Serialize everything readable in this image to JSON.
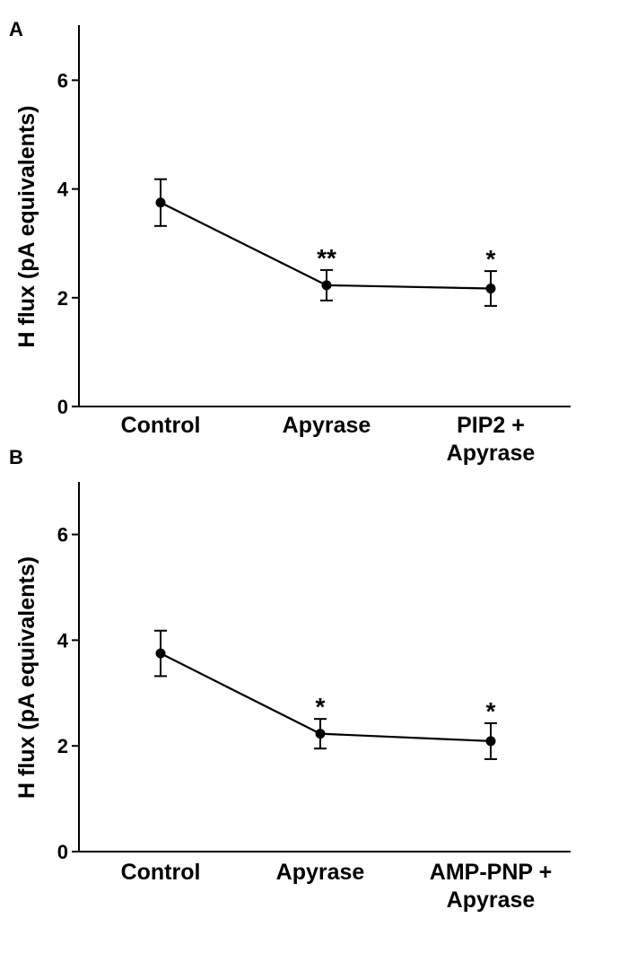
{
  "chart_data": [
    {
      "type": "line",
      "panel_label": "A",
      "ylabel": "H flux (pA equivalents)",
      "xlabel": "",
      "ylim": [
        0,
        7
      ],
      "yticks": [
        "0",
        "2",
        "4",
        "6"
      ],
      "categories": [
        "Control",
        "Apyrase",
        "PIP2 +\nApyrase"
      ],
      "series": [
        {
          "name": "H flux",
          "values": [
            3.75,
            2.23,
            2.17
          ],
          "error": [
            0.43,
            0.28,
            0.32
          ],
          "significance": [
            "",
            "**",
            "*"
          ]
        }
      ]
    },
    {
      "type": "line",
      "panel_label": "B",
      "ylabel": "H flux (pA equivalents)",
      "xlabel": "",
      "ylim": [
        0,
        7
      ],
      "yticks": [
        "0",
        "2",
        "4",
        "6"
      ],
      "categories": [
        "Control",
        "Apyrase",
        "AMP-PNP +\nApyrase"
      ],
      "series": [
        {
          "name": "H flux",
          "values": [
            3.75,
            2.23,
            2.09
          ],
          "error": [
            0.43,
            0.28,
            0.34
          ],
          "significance": [
            "",
            "*",
            "*"
          ]
        }
      ]
    }
  ]
}
